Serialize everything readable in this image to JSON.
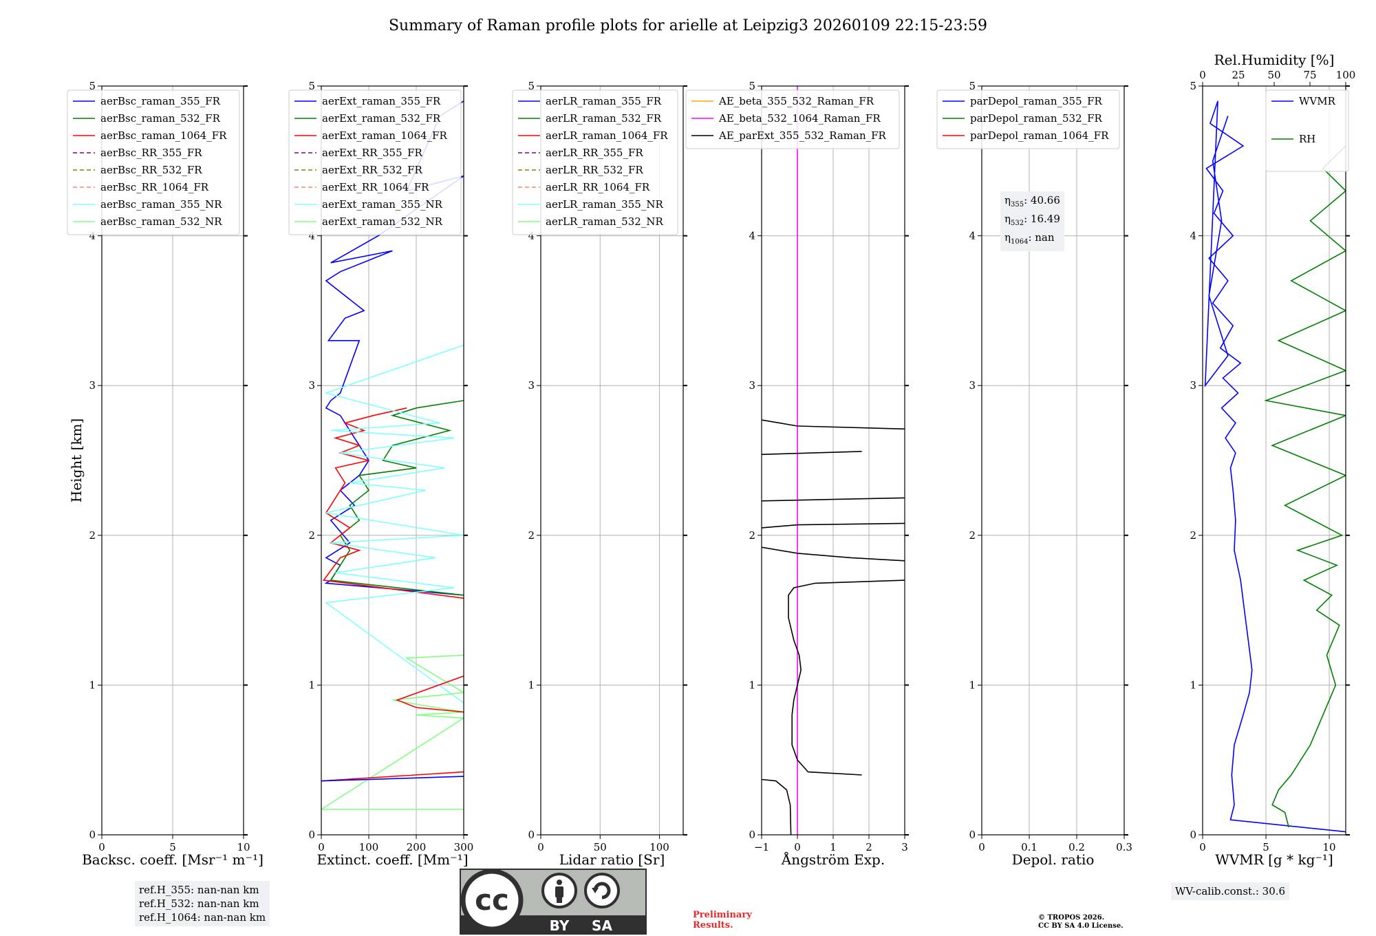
{
  "title": "Summary of Raman profile plots for arielle at Leipzig3 20260109 22:15-23:59",
  "chart_data": [
    {
      "type": "line",
      "xlabel": "Backsc. coeff. [Msr⁻¹ m⁻¹]",
      "ylabel": "Height [km]",
      "xlim": [
        0,
        10
      ],
      "ylim": [
        0,
        5
      ],
      "xticks": [
        0,
        5,
        10
      ],
      "yticks": [
        0,
        1,
        2,
        3,
        4,
        5
      ],
      "legend": [
        "aerBsc_raman_355_FR",
        "aerBsc_raman_532_FR",
        "aerBsc_raman_1064_FR",
        "aerBsc_RR_355_FR",
        "aerBsc_RR_532_FR",
        "aerBsc_RR_1064_FR",
        "aerBsc_raman_355_NR",
        "aerBsc_raman_532_NR"
      ],
      "legend_loc": "upper-left",
      "series": []
    },
    {
      "type": "line",
      "xlabel": "Extinct. coeff. [Mm⁻¹]",
      "xlim": [
        0,
        300
      ],
      "ylim": [
        0,
        5
      ],
      "xticks": [
        0,
        100,
        200,
        300
      ],
      "yticks": [
        0,
        1,
        2,
        3,
        4,
        5
      ],
      "legend": [
        "aerExt_raman_355_FR",
        "aerExt_raman_532_FR",
        "aerExt_raman_1064_FR",
        "aerExt_RR_355_FR",
        "aerExt_RR_532_FR",
        "aerExt_RR_1064_FR",
        "aerExt_raman_355_NR",
        "aerExt_raman_532_NR"
      ],
      "legend_loc": "upper-left",
      "series": [
        {
          "name": "aerExt_raman_355_FR",
          "color": "#0000ff",
          "x": [
            300,
            250,
            180,
            300,
            120,
            20,
            150,
            40,
            10,
            90,
            50,
            15,
            80,
            40,
            20,
            10,
            40,
            60,
            80,
            100,
            80,
            40,
            70,
            20,
            60,
            10,
            40,
            30,
            20,
            10,
            300
          ],
          "y": [
            4.9,
            4.8,
            4.3,
            4.4,
            4.0,
            3.82,
            3.9,
            3.76,
            3.7,
            3.5,
            3.45,
            3.3,
            3.3,
            2.95,
            2.9,
            2.85,
            2.8,
            2.7,
            2.6,
            2.5,
            2.4,
            2.3,
            2.2,
            2.1,
            1.95,
            1.85,
            1.8,
            1.75,
            1.7,
            1.68,
            1.6
          ]
        },
        {
          "name": "aerExt_raman_532_FR",
          "color": "#008000",
          "x": [
            300,
            200,
            150,
            270,
            150,
            130,
            200,
            80,
            100,
            60,
            80,
            40,
            60,
            20,
            300
          ],
          "y": [
            2.9,
            2.85,
            2.8,
            2.7,
            2.6,
            2.5,
            2.45,
            2.4,
            2.3,
            2.2,
            2.1,
            2.0,
            1.9,
            1.7,
            1.6
          ]
        },
        {
          "name": "aerExt_raman_1064_FR",
          "color": "#ff0000",
          "x": [
            180,
            110,
            50,
            90,
            30,
            80,
            40,
            100,
            30,
            50,
            10,
            60,
            20,
            80,
            40,
            5,
            300
          ],
          "y": [
            2.85,
            2.8,
            2.75,
            2.7,
            2.65,
            2.6,
            2.55,
            2.5,
            2.45,
            2.35,
            2.15,
            2.05,
            1.95,
            1.9,
            1.85,
            1.7,
            1.58
          ]
        },
        {
          "name": "aerExt_raman_355_NR",
          "color": "#80ffff",
          "x": [
            300,
            10,
            250,
            20,
            280,
            40,
            260,
            60,
            220,
            10,
            300,
            20,
            240,
            30,
            280,
            10,
            300
          ],
          "y": [
            3.27,
            2.95,
            2.75,
            2.7,
            2.65,
            2.55,
            2.45,
            2.35,
            2.3,
            2.15,
            2.0,
            1.95,
            1.85,
            1.75,
            1.65,
            1.55,
            0.88
          ]
        },
        {
          "name": "aerExt_raman_532_NR",
          "color": "#80ff80",
          "x": [
            300,
            180,
            300,
            150,
            240,
            300,
            200,
            300,
            0,
            300
          ],
          "y": [
            1.2,
            1.18,
            0.95,
            0.9,
            0.85,
            0.82,
            0.8,
            0.78,
            0.17,
            0.17
          ]
        },
        {
          "name": "red_low",
          "color": "#ff0000",
          "x": [
            300,
            160,
            200,
            300
          ],
          "y": [
            1.06,
            0.9,
            0.85,
            0.82
          ]
        },
        {
          "name": "red_base",
          "color": "#ff0000",
          "x": [
            0,
            300
          ],
          "y": [
            0.36,
            0.42
          ]
        },
        {
          "name": "blue_base",
          "color": "#0000ff",
          "x": [
            0,
            300
          ],
          "y": [
            0.36,
            0.39
          ]
        }
      ]
    },
    {
      "type": "line",
      "xlabel": "Lidar ratio [Sr]",
      "xlim": [
        0,
        120
      ],
      "ylim": [
        0,
        5
      ],
      "xticks": [
        0,
        50,
        100
      ],
      "yticks": [
        0,
        1,
        2,
        3,
        4,
        5
      ],
      "legend": [
        "aerLR_raman_355_FR",
        "aerLR_raman_532_FR",
        "aerLR_raman_1064_FR",
        "aerLR_RR_355_FR",
        "aerLR_RR_532_FR",
        "aerLR_RR_1064_FR",
        "aerLR_raman_355_NR",
        "aerLR_raman_532_NR"
      ],
      "legend_loc": "upper-left",
      "series": []
    },
    {
      "type": "line",
      "xlabel": "Ångström Exp.",
      "xlim": [
        -1,
        3
      ],
      "ylim": [
        0,
        5
      ],
      "xticks": [
        -1,
        0,
        1,
        2,
        3
      ],
      "yticks": [
        0,
        1,
        2,
        3,
        4,
        5
      ],
      "legend": [
        "AE_beta_355_532_Raman_FR",
        "AE_beta_532_1064_Raman_FR",
        "AE_parExt_355_532_Raman_FR"
      ],
      "legend_loc": "upper-left",
      "series": [
        {
          "name": "AE_beta_532_1064_Raman_FR",
          "color": "#ff00ff",
          "x": [
            0,
            0
          ],
          "y": [
            0,
            5
          ]
        },
        {
          "name": "AE_parExt_355_532_Raman_FR",
          "color": "#000000",
          "x": [
            -0.18,
            -0.2,
            -0.3,
            -0.6,
            -1.0
          ],
          "y": [
            0.0,
            0.2,
            0.3,
            0.36,
            0.37
          ]
        },
        {
          "name": "AE_parExt_355_532_Raman_FR",
          "color": "#000000",
          "x": [
            1.8,
            0.3,
            0.0,
            -0.15,
            -0.15,
            -0.1,
            0.0,
            0.1,
            0.05,
            -0.1,
            -0.25,
            -0.25,
            -0.1,
            0.5,
            3.0
          ],
          "y": [
            0.4,
            0.42,
            0.5,
            0.6,
            0.8,
            0.9,
            1.0,
            1.1,
            1.2,
            1.3,
            1.45,
            1.6,
            1.65,
            1.68,
            1.7
          ]
        },
        {
          "name": "AE_parExt_355_532_Raman_FR",
          "color": "#000000",
          "x": [
            3.0,
            1.5,
            0.0,
            -1.0
          ],
          "y": [
            1.83,
            1.85,
            1.88,
            1.92
          ]
        },
        {
          "name": "AE_parExt_355_532_Raman_FR",
          "color": "#000000",
          "x": [
            -1.0,
            0.0,
            3.0
          ],
          "y": [
            2.05,
            2.07,
            2.08
          ]
        },
        {
          "name": "AE_parExt_355_532_Raman_FR",
          "color": "#000000",
          "x": [
            -1.0,
            1.0,
            3.0
          ],
          "y": [
            2.23,
            2.24,
            2.25
          ]
        },
        {
          "name": "AE_parExt_355_532_Raman_FR",
          "color": "#000000",
          "x": [
            -1.0,
            1.8
          ],
          "y": [
            2.54,
            2.56
          ]
        },
        {
          "name": "AE_parExt_355_532_Raman_FR",
          "color": "#000000",
          "x": [
            -1.0,
            -0.5,
            0.0,
            3.0
          ],
          "y": [
            2.77,
            2.75,
            2.73,
            2.71
          ]
        }
      ]
    },
    {
      "type": "line",
      "xlabel": "Depol. ratio",
      "xlim": [
        0.0,
        0.3
      ],
      "ylim": [
        0,
        5
      ],
      "xticks": [
        0.0,
        0.1,
        0.2,
        0.3
      ],
      "yticks": [
        0,
        1,
        2,
        3,
        4,
        5
      ],
      "legend": [
        "parDepol_raman_355_FR",
        "parDepol_raman_532_FR",
        "parDepol_raman_1064_FR"
      ],
      "legend_loc": "upper-left",
      "series": []
    },
    {
      "type": "line",
      "xlabel": "WVMR [g * kg⁻¹]",
      "x2label": "Rel.Humidity [%]",
      "xlim": [
        0,
        11.3
      ],
      "x2lim": [
        0,
        100
      ],
      "ylim": [
        0,
        5
      ],
      "xticks": [
        0,
        5,
        10
      ],
      "x2ticks": [
        0,
        25,
        50,
        75,
        100
      ],
      "yticks": [
        0,
        1,
        2,
        3,
        4,
        5
      ],
      "legend": [
        "WVMR",
        "RH"
      ],
      "legend_loc": "upper-right",
      "series": [
        {
          "name": "WVMR",
          "color": "#0000ff",
          "x": [
            11.3,
            2.2,
            2.5,
            2.3,
            2.5,
            3.2,
            3.7,
            3.9,
            3.6,
            3.3,
            3.0,
            2.5,
            2.6,
            2.4,
            2.2,
            2.6,
            1.8,
            2.6,
            1.5,
            2.8,
            1.6,
            3.0,
            1.4,
            2.4,
            0.8,
            2.0,
            0.5,
            2.4,
            0.9,
            1.6,
            0.3,
            3.2,
            0.6,
            1.2,
            0.2,
            2.0,
            0.5,
            1.5,
            0.8,
            2.0
          ],
          "y": [
            0.02,
            0.1,
            0.2,
            0.4,
            0.6,
            0.8,
            0.95,
            1.1,
            1.3,
            1.5,
            1.7,
            1.9,
            2.1,
            2.3,
            2.45,
            2.55,
            2.65,
            2.75,
            2.85,
            2.95,
            3.05,
            3.15,
            3.25,
            3.4,
            3.55,
            3.7,
            3.85,
            4.0,
            4.15,
            4.3,
            4.45,
            4.6,
            4.75,
            4.9,
            3.0,
            3.2,
            3.6,
            4.1,
            4.5,
            4.8
          ]
        },
        {
          "name": "RH",
          "color": "#008000",
          "x": [
            6.8,
            6.5,
            5.5,
            6.0,
            7.0,
            8.5,
            9.5,
            10.5,
            9.8,
            10.8,
            9.0,
            10.2,
            8.0,
            10.6,
            7.5,
            11.0,
            6.5,
            11.3,
            5.5,
            11.3,
            5.0,
            11.3,
            6.0,
            11.3,
            7.0,
            11.3,
            8.5,
            11.3,
            9.5,
            11.3
          ],
          "y": [
            0.05,
            0.15,
            0.2,
            0.3,
            0.4,
            0.6,
            0.8,
            1.0,
            1.2,
            1.4,
            1.5,
            1.6,
            1.7,
            1.8,
            1.9,
            2.0,
            2.2,
            2.4,
            2.6,
            2.8,
            2.9,
            3.1,
            3.3,
            3.5,
            3.7,
            3.9,
            4.1,
            4.3,
            4.45,
            4.6
          ]
        }
      ]
    }
  ],
  "refh_lines": [
    "ref.H_355: nan-nan km",
    "ref.H_532: nan-nan km",
    "ref.H_1064: nan-nan km"
  ],
  "eta": [
    {
      "sym": "η",
      "sub": "355",
      "val": ": 40.66"
    },
    {
      "sym": "η",
      "sub": "532",
      "val": ": 16.49"
    },
    {
      "sym": "η",
      "sub": "1064",
      "val": ": nan"
    }
  ],
  "wvcalib": "WV-calib.const.: 30.6",
  "cc_badge": {
    "by": "BY",
    "sa": "SA",
    "cc": "cc"
  },
  "preliminary": [
    "Preliminary",
    "Results."
  ],
  "copyright": [
    "© TROPOS 2026.",
    "CC BY SA 4.0 License."
  ],
  "colors": {
    "blue": "#0000ff",
    "green": "#008000",
    "red": "#ff0000",
    "purple": "#800080",
    "olive": "#808000",
    "salmon": "#fa8072",
    "cyan": "#80ffff",
    "lightgreen": "#80ff80",
    "orange": "#ffa500",
    "magenta": "#ff00ff",
    "black": "#000000",
    "grid": "#b0b0b0",
    "badge_grey": "#b6bbb6",
    "badge_dark": "#303030",
    "prelim": "#e8292b"
  }
}
